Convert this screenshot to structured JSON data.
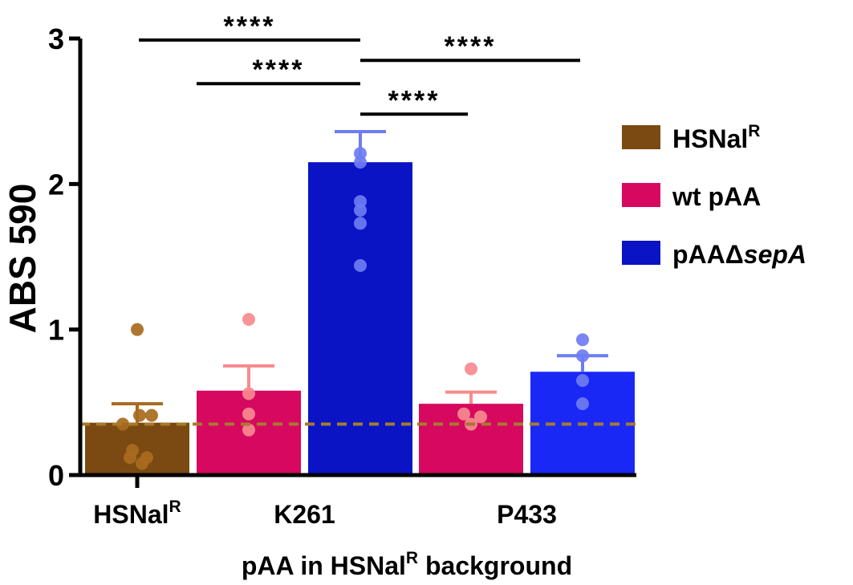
{
  "chart_data": {
    "type": "bar",
    "ylabel": "ABS 590",
    "xlabel": {
      "prefix": "pAA in HSNal",
      "sup": "R",
      "suffix": " background"
    },
    "ylim": [
      0,
      3
    ],
    "yticks": [
      "0",
      "1",
      "2",
      "3"
    ],
    "group_labels": [
      {
        "text": "HSNal",
        "sup": "R"
      },
      {
        "text": "K261",
        "sup": ""
      },
      {
        "text": "P433",
        "sup": ""
      }
    ],
    "legend": [
      {
        "text": "HSNal",
        "sup": "R",
        "italic": "",
        "color": "#7a4a12"
      },
      {
        "text": "wt pAA",
        "sup": "",
        "italic": "",
        "color": "#d6085f"
      },
      {
        "text": "pAAΔ",
        "sup": "",
        "italic": "sepA",
        "color": "#0a14c4"
      }
    ],
    "bars": [
      {
        "group": "HSNalᴿ",
        "strain": "HSNalᴿ",
        "value": 0.36,
        "sem": 0.13,
        "color": "#7a4a12",
        "point_color": "#a86a1e",
        "points": [
          1.0,
          0.41,
          0.41,
          0.35,
          0.17,
          0.12,
          0.12,
          0.08
        ]
      },
      {
        "group": "K261",
        "strain": "wt pAA",
        "value": 0.58,
        "sem": 0.17,
        "color": "#d6085f",
        "point_color": "#f78a8e",
        "points": [
          1.07,
          0.56,
          0.42,
          0.31
        ]
      },
      {
        "group": "K261",
        "strain": "pAAΔsepA",
        "value": 2.15,
        "sem": 0.21,
        "color": "#0a14c4",
        "point_color": "#6e7cf2",
        "points": [
          2.21,
          2.15,
          1.88,
          1.82,
          1.73,
          1.44
        ]
      },
      {
        "group": "P433",
        "strain": "wt pAA",
        "value": 0.49,
        "sem": 0.08,
        "color": "#d6085f",
        "point_color": "#f78a8e",
        "points": [
          0.73,
          0.42,
          0.4,
          0.35
        ]
      },
      {
        "group": "P433",
        "strain": "pAAΔsepA",
        "value": 0.71,
        "sem": 0.11,
        "color": "#1a28f5",
        "point_color": "#6e7cf2",
        "points": [
          0.93,
          0.82,
          0.65,
          0.49
        ]
      }
    ],
    "baseline": {
      "value": 0.35,
      "color": "#a87a2c",
      "style": "dashed"
    },
    "significance": [
      {
        "from_bar": 0,
        "to_bar": 2,
        "label": "****",
        "y": 2.99
      },
      {
        "from_bar": 1,
        "to_bar": 2,
        "label": "****",
        "y": 2.69
      },
      {
        "from_bar": 2,
        "to_bar": 4,
        "label": "****",
        "y": 2.85
      },
      {
        "from_bar": 2,
        "to_bar": 3,
        "label": "****",
        "y": 2.48
      }
    ]
  }
}
